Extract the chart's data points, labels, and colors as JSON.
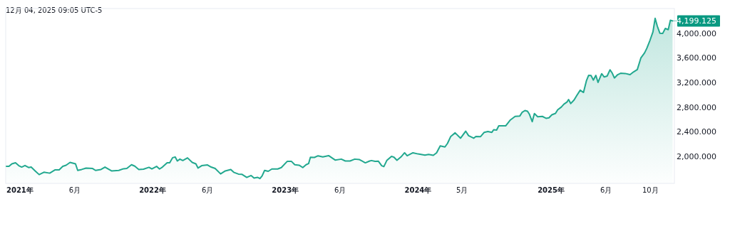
{
  "chart_data": {
    "type": "area",
    "title": "12月 04, 2025 09:05 UTC-5",
    "xlim": [
      "2020-11-23",
      "2025-12-06"
    ],
    "ylim": [
      1560,
      4400
    ],
    "xticks": [
      {
        "value": "2021-01-01",
        "label": "2021年"
      },
      {
        "value": "2021-06-01",
        "label": "6月"
      },
      {
        "value": "2022-01-01",
        "label": "2022年"
      },
      {
        "value": "2022-06-01",
        "label": "6月"
      },
      {
        "value": "2023-01-01",
        "label": "2023年"
      },
      {
        "value": "2023-06-01",
        "label": "6月"
      },
      {
        "value": "2024-01-01",
        "label": "2024年"
      },
      {
        "value": "2024-05-01",
        "label": "5月"
      },
      {
        "value": "2025-01-01",
        "label": "2025年"
      },
      {
        "value": "2025-06-01",
        "label": "6月"
      },
      {
        "value": "2025-10-01",
        "label": "10月"
      }
    ],
    "yticks": [
      {
        "value": 2000,
        "label": "2,000.000"
      },
      {
        "value": 2400,
        "label": "2,400.000"
      },
      {
        "value": 2800,
        "label": "2,800.000"
      },
      {
        "value": 3200,
        "label": "3,200.000"
      },
      {
        "value": 3600,
        "label": "3,600.000"
      },
      {
        "value": 4000,
        "label": "4,000.000"
      }
    ],
    "grid": false,
    "annotations": [
      {
        "text": "4,199.125",
        "x": "2025-12-01",
        "y": 4199.125
      }
    ],
    "series": [
      {
        "color": "#22a88f",
        "x": [
          "2020-11-25",
          "2020-12-02",
          "2020-12-10",
          "2020-12-20",
          "2020-12-29",
          "2021-01-06",
          "2021-01-15",
          "2021-01-25",
          "2021-02-01",
          "2021-02-12",
          "2021-02-23",
          "2021-03-08",
          "2021-03-24",
          "2021-04-08",
          "2021-04-19",
          "2021-04-29",
          "2021-05-08",
          "2021-05-19",
          "2021-06-03",
          "2021-06-09",
          "2021-06-20",
          "2021-07-02",
          "2021-07-20",
          "2021-07-28",
          "2021-08-12",
          "2021-08-23",
          "2021-09-10",
          "2021-09-30",
          "2021-10-13",
          "2021-10-22",
          "2021-11-04",
          "2021-11-13",
          "2021-11-24",
          "2021-12-07",
          "2021-12-22",
          "2021-12-30",
          "2022-01-12",
          "2022-01-20",
          "2022-01-28",
          "2022-02-10",
          "2022-02-17",
          "2022-02-25",
          "2022-03-04",
          "2022-03-10",
          "2022-03-17",
          "2022-03-25",
          "2022-04-07",
          "2022-04-20",
          "2022-04-30",
          "2022-05-06",
          "2022-05-16",
          "2022-06-01",
          "2022-06-11",
          "2022-06-22",
          "2022-07-07",
          "2022-07-20",
          "2022-08-04",
          "2022-08-12",
          "2022-08-25",
          "2022-09-04",
          "2022-09-17",
          "2022-09-29",
          "2022-10-07",
          "2022-10-17",
          "2022-10-23",
          "2022-10-29",
          "2022-11-05",
          "2022-11-15",
          "2022-11-25",
          "2022-12-11",
          "2022-12-21",
          "2023-01-06",
          "2023-01-18",
          "2023-01-27",
          "2023-02-08",
          "2023-02-18",
          "2023-02-27",
          "2023-03-06",
          "2023-03-11",
          "2023-03-22",
          "2023-04-01",
          "2023-04-14",
          "2023-04-30",
          "2023-05-18",
          "2023-06-04",
          "2023-06-15",
          "2023-06-28",
          "2023-07-11",
          "2023-07-24",
          "2023-08-09",
          "2023-08-21",
          "2023-08-26",
          "2023-09-05",
          "2023-09-14",
          "2023-09-23",
          "2023-09-29",
          "2023-10-07",
          "2023-10-20",
          "2023-10-27",
          "2023-11-04",
          "2023-11-15",
          "2023-11-25",
          "2023-12-02",
          "2023-12-18",
          "2024-01-01",
          "2024-01-20",
          "2024-01-30",
          "2024-02-12",
          "2024-02-21",
          "2024-03-02",
          "2024-03-15",
          "2024-03-22",
          "2024-03-31",
          "2024-04-12",
          "2024-04-27",
          "2024-05-11",
          "2024-05-19",
          "2024-06-02",
          "2024-06-08",
          "2024-06-21",
          "2024-07-01",
          "2024-07-11",
          "2024-07-22",
          "2024-07-27",
          "2024-08-04",
          "2024-08-10",
          "2024-08-29",
          "2024-09-11",
          "2024-09-24",
          "2024-10-07",
          "2024-10-13",
          "2024-10-21",
          "2024-10-28",
          "2024-11-02",
          "2024-11-10",
          "2024-11-16",
          "2024-11-25",
          "2024-12-08",
          "2024-12-18",
          "2024-12-26",
          "2025-01-03",
          "2025-01-13",
          "2025-01-19",
          "2025-01-29",
          "2025-02-05",
          "2025-02-14",
          "2025-02-18",
          "2025-02-24",
          "2025-03-05",
          "2025-03-13",
          "2025-03-22",
          "2025-03-31",
          "2025-04-08",
          "2025-04-14",
          "2025-04-21",
          "2025-04-27",
          "2025-05-04",
          "2025-05-10",
          "2025-05-20",
          "2025-05-27",
          "2025-06-04",
          "2025-06-12",
          "2025-06-18",
          "2025-06-24",
          "2025-07-03",
          "2025-07-11",
          "2025-07-24",
          "2025-08-06",
          "2025-08-16",
          "2025-08-26",
          "2025-09-05",
          "2025-09-15",
          "2025-09-21",
          "2025-09-30",
          "2025-10-08",
          "2025-10-14",
          "2025-10-20",
          "2025-10-27",
          "2025-11-04",
          "2025-11-11",
          "2025-11-19",
          "2025-11-25",
          "2025-12-01"
        ],
        "values": [
          1837,
          1837,
          1878,
          1894,
          1848,
          1825,
          1851,
          1817,
          1825,
          1763,
          1703,
          1741,
          1726,
          1780,
          1780,
          1837,
          1855,
          1901,
          1878,
          1771,
          1786,
          1809,
          1802,
          1771,
          1786,
          1825,
          1763,
          1771,
          1798,
          1802,
          1863,
          1840,
          1786,
          1791,
          1821,
          1794,
          1837,
          1794,
          1825,
          1894,
          1894,
          1977,
          1989,
          1924,
          1954,
          1931,
          1974,
          1901,
          1878,
          1809,
          1848,
          1859,
          1825,
          1802,
          1714,
          1763,
          1786,
          1741,
          1711,
          1706,
          1657,
          1688,
          1646,
          1657,
          1638,
          1680,
          1771,
          1756,
          1794,
          1794,
          1817,
          1917,
          1917,
          1863,
          1855,
          1817,
          1863,
          1882,
          1985,
          1981,
          2008,
          1989,
          2011,
          1939,
          1954,
          1924,
          1924,
          1954,
          1946,
          1894,
          1924,
          1931,
          1917,
          1920,
          1848,
          1832,
          1931,
          2000,
          1985,
          1935,
          1989,
          2057,
          2008,
          2057,
          2038,
          2019,
          2031,
          2015,
          2057,
          2168,
          2152,
          2209,
          2323,
          2381,
          2294,
          2408,
          2335,
          2294,
          2323,
          2320,
          2389,
          2403,
          2389,
          2431,
          2426,
          2495,
          2495,
          2591,
          2648,
          2655,
          2712,
          2743,
          2732,
          2686,
          2563,
          2694,
          2643,
          2648,
          2617,
          2625,
          2674,
          2697,
          2754,
          2800,
          2846,
          2884,
          2922,
          2857,
          2914,
          2991,
          3074,
          3037,
          3226,
          3314,
          3311,
          3238,
          3314,
          3200,
          3341,
          3288,
          3303,
          3405,
          3352,
          3272,
          3326,
          3349,
          3345,
          3326,
          3372,
          3409,
          3600,
          3680,
          3752,
          3886,
          4020,
          4240,
          4114,
          4000,
          3997,
          4077,
          4057,
          4210,
          4199.125
        ]
      }
    ]
  }
}
